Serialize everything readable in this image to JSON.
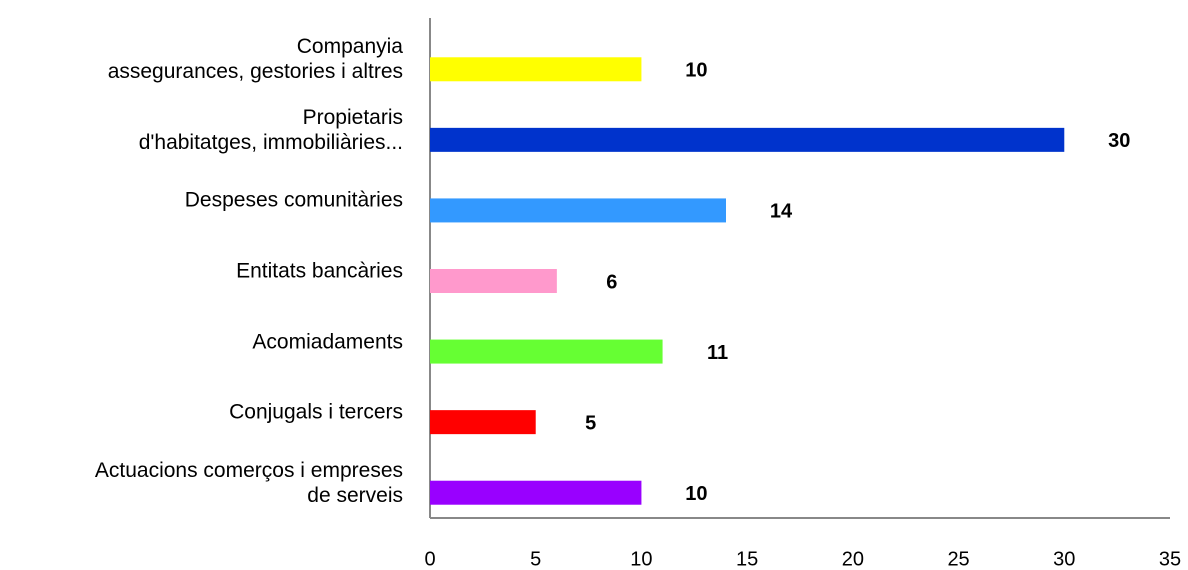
{
  "chart_data": {
    "type": "bar",
    "orientation": "horizontal",
    "categories": [
      "Companyia\nassegurances, gestories i altres",
      "Propietaris\nd'habitatges, immobiliàries...",
      "Despeses comunitàries",
      "Entitats bancàries",
      "Acomiadaments",
      "Conjugals i tercers",
      "Actuacions comerços i empreses\nde serveis"
    ],
    "values": [
      10,
      30,
      14,
      6,
      11,
      5,
      10
    ],
    "colors": [
      "#ffff00",
      "#0033cc",
      "#3399ff",
      "#ff99cc",
      "#66ff33",
      "#ff0000",
      "#9900ff"
    ],
    "xlim": [
      0,
      35
    ],
    "xticks": [
      0,
      5,
      10,
      15,
      20,
      25,
      30,
      35
    ],
    "grid": false
  }
}
